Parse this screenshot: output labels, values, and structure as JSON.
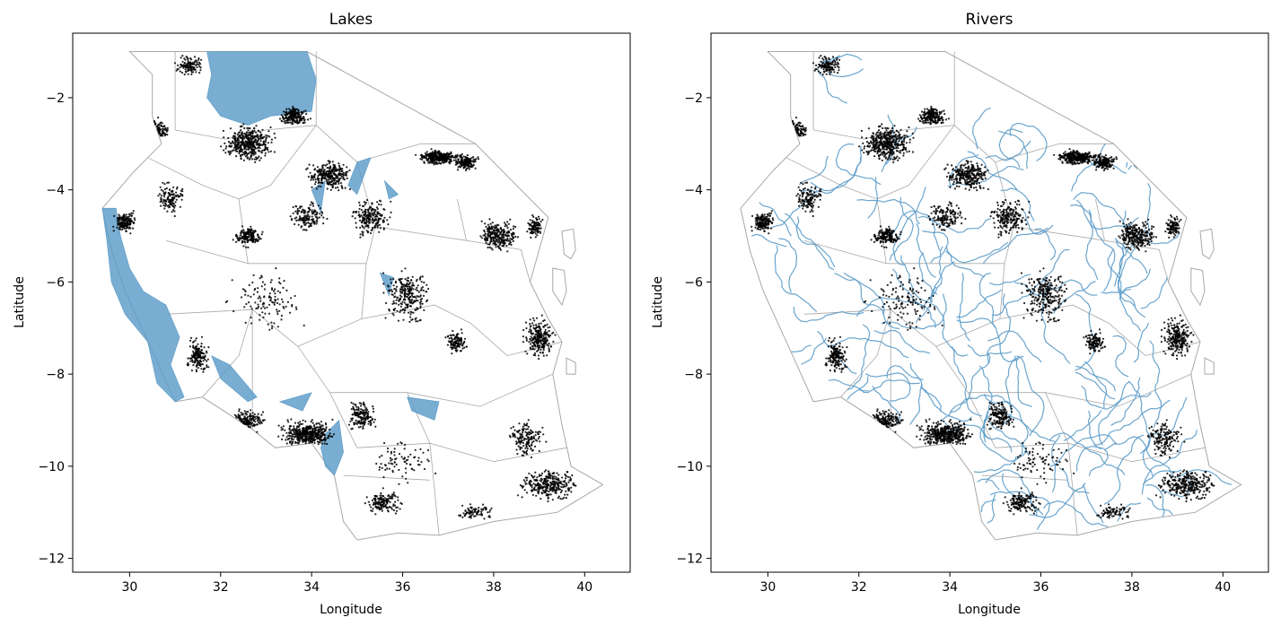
{
  "figure": {
    "panels": [
      {
        "id": "lakes",
        "title": "Lakes",
        "xlabel": "Longitude",
        "ylabel": "Latitude",
        "xlim": [
          28.75,
          41.0
        ],
        "ylim": [
          -12.3,
          -0.6
        ],
        "xticks": [
          30,
          32,
          34,
          36,
          38,
          40
        ],
        "yticks": [
          -2,
          -4,
          -6,
          -8,
          -10,
          -12
        ],
        "water_layer": "lakes"
      },
      {
        "id": "rivers",
        "title": "Rivers",
        "xlabel": "Longitude",
        "ylabel": "Latitude",
        "xlim": [
          28.75,
          41.0
        ],
        "ylim": [
          -12.3,
          -0.6
        ],
        "xticks": [
          30,
          32,
          34,
          36,
          38,
          40
        ],
        "yticks": [
          -2,
          -4,
          -6,
          -8,
          -10,
          -12
        ],
        "water_layer": "rivers"
      }
    ]
  },
  "colors": {
    "water": "#5b9bc8",
    "boundary": "#a8a8a8",
    "points": "#000000",
    "axes": "#000000"
  },
  "map": {
    "country_outline": [
      [
        30.0,
        -1.0
      ],
      [
        33.9,
        -1.0
      ],
      [
        37.6,
        -3.0
      ],
      [
        39.2,
        -4.6
      ],
      [
        38.8,
        -6.0
      ],
      [
        39.2,
        -6.8
      ],
      [
        39.5,
        -7.3
      ],
      [
        39.3,
        -8.0
      ],
      [
        39.5,
        -9.1
      ],
      [
        39.7,
        -10.0
      ],
      [
        40.4,
        -10.4
      ],
      [
        39.4,
        -11.0
      ],
      [
        38.0,
        -11.2
      ],
      [
        36.8,
        -11.5
      ],
      [
        35.9,
        -11.45
      ],
      [
        35.0,
        -11.6
      ],
      [
        34.7,
        -11.2
      ],
      [
        34.5,
        -10.2
      ],
      [
        34.0,
        -9.5
      ],
      [
        33.2,
        -9.6
      ],
      [
        32.7,
        -9.2
      ],
      [
        31.6,
        -8.5
      ],
      [
        31.0,
        -8.6
      ],
      [
        30.5,
        -7.5
      ],
      [
        29.9,
        -6.2
      ],
      [
        29.6,
        -5.3
      ],
      [
        29.4,
        -4.4
      ],
      [
        30.1,
        -3.6
      ],
      [
        30.7,
        -3.0
      ],
      [
        30.5,
        -2.4
      ],
      [
        30.5,
        -1.5
      ],
      [
        30.0,
        -1.0
      ]
    ],
    "islands": [
      [
        [
          39.5,
          -4.9
        ],
        [
          39.75,
          -4.85
        ],
        [
          39.8,
          -5.3
        ],
        [
          39.7,
          -5.5
        ],
        [
          39.55,
          -5.4
        ]
      ],
      [
        [
          39.3,
          -5.7
        ],
        [
          39.55,
          -5.75
        ],
        [
          39.6,
          -6.2
        ],
        [
          39.5,
          -6.5
        ],
        [
          39.3,
          -6.2
        ]
      ],
      [
        [
          39.6,
          -7.65
        ],
        [
          39.8,
          -7.75
        ],
        [
          39.8,
          -8.0
        ],
        [
          39.6,
          -8.0
        ]
      ]
    ],
    "regions": [
      [
        [
          31.0,
          -1.0
        ],
        [
          31.0,
          -2.7
        ]
      ],
      [
        [
          31.0,
          -2.7
        ],
        [
          32.1,
          -2.9
        ],
        [
          33.0,
          -2.7
        ],
        [
          34.1,
          -2.6
        ]
      ],
      [
        [
          34.1,
          -1.0
        ],
        [
          34.1,
          -2.6
        ],
        [
          35.0,
          -3.4
        ]
      ],
      [
        [
          35.0,
          -3.4
        ],
        [
          36.4,
          -3.0
        ],
        [
          37.6,
          -3.0
        ]
      ],
      [
        [
          35.0,
          -3.4
        ],
        [
          35.4,
          -4.8
        ],
        [
          35.2,
          -5.6
        ]
      ],
      [
        [
          34.1,
          -2.6
        ],
        [
          33.1,
          -3.9
        ],
        [
          32.4,
          -4.2
        ]
      ],
      [
        [
          30.4,
          -3.3
        ],
        [
          31.6,
          -3.9
        ],
        [
          32.4,
          -4.2
        ],
        [
          32.6,
          -5.6
        ],
        [
          33.6,
          -5.6
        ],
        [
          35.2,
          -5.6
        ]
      ],
      [
        [
          30.8,
          -5.1
        ],
        [
          32.6,
          -5.6
        ]
      ],
      [
        [
          37.2,
          -4.2
        ],
        [
          37.4,
          -5.1
        ],
        [
          38.6,
          -5.3
        ],
        [
          38.8,
          -6.0
        ]
      ],
      [
        [
          35.4,
          -4.8
        ],
        [
          37.4,
          -5.1
        ]
      ],
      [
        [
          35.2,
          -5.6
        ],
        [
          35.1,
          -6.8
        ],
        [
          36.7,
          -6.5
        ],
        [
          37.5,
          -6.9
        ],
        [
          38.3,
          -7.6
        ],
        [
          39.5,
          -7.3
        ]
      ],
      [
        [
          30.8,
          -6.7
        ],
        [
          32.7,
          -6.6
        ],
        [
          33.7,
          -7.4
        ],
        [
          35.1,
          -6.8
        ]
      ],
      [
        [
          33.7,
          -7.4
        ],
        [
          34.4,
          -8.4
        ],
        [
          35.0,
          -9.6
        ]
      ],
      [
        [
          32.7,
          -6.6
        ],
        [
          32.7,
          -8.2
        ],
        [
          32.7,
          -9.2
        ]
      ],
      [
        [
          34.4,
          -8.4
        ],
        [
          36.1,
          -8.4
        ],
        [
          37.7,
          -8.7
        ],
        [
          39.3,
          -8.0
        ]
      ],
      [
        [
          35.0,
          -9.6
        ],
        [
          36.6,
          -9.5
        ],
        [
          38.0,
          -9.9
        ],
        [
          39.6,
          -9.6
        ]
      ],
      [
        [
          36.1,
          -8.4
        ],
        [
          36.6,
          -9.5
        ],
        [
          36.8,
          -11.5
        ]
      ],
      [
        [
          34.7,
          -10.2
        ],
        [
          36.6,
          -10.3
        ]
      ],
      [
        [
          31.6,
          -8.5
        ],
        [
          32.4,
          -7.6
        ],
        [
          32.7,
          -6.6
        ]
      ]
    ],
    "lakes": [
      [
        [
          31.7,
          -1.0
        ],
        [
          33.9,
          -1.0
        ],
        [
          34.1,
          -1.6
        ],
        [
          34.0,
          -2.3
        ],
        [
          33.1,
          -2.4
        ],
        [
          32.6,
          -2.6
        ],
        [
          32.0,
          -2.4
        ],
        [
          31.7,
          -2.0
        ],
        [
          31.8,
          -1.5
        ]
      ],
      [
        [
          29.4,
          -4.4
        ],
        [
          29.7,
          -4.4
        ],
        [
          29.8,
          -5.0
        ],
        [
          30.0,
          -5.7
        ],
        [
          30.3,
          -6.2
        ],
        [
          30.8,
          -6.5
        ],
        [
          31.1,
          -7.2
        ],
        [
          30.9,
          -7.8
        ],
        [
          31.2,
          -8.5
        ],
        [
          31.0,
          -8.6
        ],
        [
          30.6,
          -8.2
        ],
        [
          30.4,
          -7.3
        ],
        [
          29.9,
          -6.7
        ],
        [
          29.6,
          -6.0
        ],
        [
          29.5,
          -5.1
        ]
      ],
      [
        [
          34.2,
          -9.6
        ],
        [
          34.3,
          -9.3
        ],
        [
          34.6,
          -9.0
        ],
        [
          34.7,
          -9.7
        ],
        [
          34.5,
          -10.2
        ],
        [
          34.3,
          -10.0
        ]
      ],
      [
        [
          31.8,
          -7.6
        ],
        [
          32.2,
          -7.8
        ],
        [
          32.8,
          -8.5
        ],
        [
          32.6,
          -8.6
        ],
        [
          32.0,
          -8.1
        ]
      ],
      [
        [
          35.0,
          -3.4
        ],
        [
          35.3,
          -3.3
        ],
        [
          35.0,
          -4.1
        ],
        [
          34.8,
          -3.9
        ]
      ],
      [
        [
          34.0,
          -4.0
        ],
        [
          34.3,
          -3.8
        ],
        [
          34.2,
          -4.5
        ]
      ],
      [
        [
          35.5,
          -5.8
        ],
        [
          35.8,
          -5.9
        ],
        [
          35.7,
          -6.3
        ]
      ],
      [
        [
          36.1,
          -8.5
        ],
        [
          36.8,
          -8.6
        ],
        [
          36.7,
          -9.0
        ],
        [
          36.2,
          -8.8
        ]
      ],
      [
        [
          33.3,
          -8.6
        ],
        [
          34.0,
          -8.4
        ],
        [
          33.8,
          -8.8
        ]
      ],
      [
        [
          35.6,
          -3.8
        ],
        [
          35.9,
          -4.1
        ],
        [
          35.7,
          -4.2
        ]
      ]
    ],
    "point_clusters": [
      [
        30.6,
        -2.7,
        0.3,
        0.3,
        160
      ],
      [
        31.3,
        -1.3,
        0.4,
        0.25,
        120
      ],
      [
        32.6,
        -3.0,
        0.7,
        0.5,
        420
      ],
      [
        33.6,
        -2.4,
        0.4,
        0.25,
        200
      ],
      [
        34.4,
        -3.7,
        0.6,
        0.4,
        280
      ],
      [
        36.8,
        -3.3,
        0.6,
        0.2,
        320
      ],
      [
        37.4,
        -3.4,
        0.3,
        0.2,
        150
      ],
      [
        35.3,
        -4.6,
        0.5,
        0.5,
        200
      ],
      [
        36.1,
        -6.3,
        0.6,
        0.7,
        260
      ],
      [
        38.1,
        -5.0,
        0.5,
        0.4,
        260
      ],
      [
        38.9,
        -4.8,
        0.2,
        0.3,
        100
      ],
      [
        39.0,
        -7.2,
        0.4,
        0.5,
        250
      ],
      [
        39.2,
        -10.4,
        0.8,
        0.4,
        300
      ],
      [
        33.9,
        -9.3,
        0.7,
        0.35,
        420
      ],
      [
        35.1,
        -8.9,
        0.4,
        0.4,
        160
      ],
      [
        32.6,
        -9.0,
        0.5,
        0.3,
        180
      ],
      [
        31.5,
        -7.6,
        0.3,
        0.5,
        160
      ],
      [
        29.9,
        -4.7,
        0.3,
        0.3,
        150
      ],
      [
        30.9,
        -4.2,
        0.4,
        0.5,
        120
      ],
      [
        32.6,
        -5.0,
        0.4,
        0.3,
        160
      ],
      [
        35.6,
        -10.8,
        0.5,
        0.3,
        150
      ],
      [
        33.9,
        -4.6,
        0.5,
        0.4,
        140
      ],
      [
        37.2,
        -7.3,
        0.3,
        0.3,
        120
      ],
      [
        38.7,
        -9.4,
        0.5,
        0.5,
        150
      ],
      [
        33.0,
        -6.4,
        1.0,
        0.8,
        120
      ],
      [
        36.0,
        -9.9,
        0.8,
        0.6,
        80
      ],
      [
        37.6,
        -11.0,
        0.5,
        0.2,
        80
      ]
    ],
    "river_sources": [
      [
        30.2,
        -2.6
      ],
      [
        31.2,
        -1.4
      ],
      [
        32.5,
        -3.6
      ],
      [
        33.3,
        -4.8
      ],
      [
        34.5,
        -3.2
      ],
      [
        35.8,
        -3.4
      ],
      [
        36.7,
        -4.2
      ],
      [
        37.8,
        -3.6
      ],
      [
        38.4,
        -5.0
      ],
      [
        30.4,
        -5.2
      ],
      [
        31.5,
        -5.8
      ],
      [
        32.2,
        -6.8
      ],
      [
        33.8,
        -6.3
      ],
      [
        35.0,
        -6.0
      ],
      [
        36.2,
        -6.0
      ],
      [
        37.2,
        -6.2
      ],
      [
        38.2,
        -6.8
      ],
      [
        31.2,
        -7.2
      ],
      [
        32.2,
        -8.3
      ],
      [
        33.5,
        -8.2
      ],
      [
        34.6,
        -7.5
      ],
      [
        35.6,
        -7.6
      ],
      [
        36.8,
        -7.8
      ],
      [
        38.0,
        -8.2
      ],
      [
        33.8,
        -9.0
      ],
      [
        34.8,
        -9.2
      ],
      [
        35.5,
        -9.8
      ],
      [
        36.4,
        -9.4
      ],
      [
        37.4,
        -9.6
      ],
      [
        38.4,
        -9.2
      ],
      [
        35.0,
        -10.6
      ],
      [
        36.0,
        -11.0
      ],
      [
        37.0,
        -10.4
      ],
      [
        38.2,
        -10.7
      ],
      [
        39.0,
        -10.2
      ],
      [
        32.8,
        -5.6
      ],
      [
        34.0,
        -5.2
      ],
      [
        36.0,
        -4.8
      ],
      [
        37.6,
        -5.2
      ],
      [
        30.8,
        -4.0
      ]
    ]
  }
}
